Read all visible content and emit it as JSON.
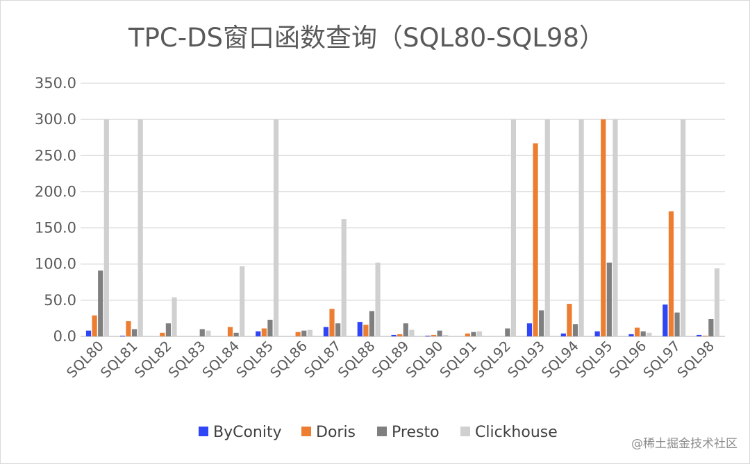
{
  "chart_data": {
    "type": "bar",
    "title": "TPC-DS窗口函数查询（SQL80-SQL98）",
    "categories": [
      "SQL80",
      "SQL81",
      "SQL82",
      "SQL83",
      "SQL84",
      "SQL85",
      "SQL86",
      "SQL87",
      "SQL88",
      "SQL89",
      "SQL90",
      "SQL91",
      "SQL92",
      "SQL93",
      "SQL94",
      "SQL95",
      "SQL96",
      "SQL97",
      "SQL98"
    ],
    "series": [
      {
        "name": "ByConity",
        "color": "#2e46f5",
        "values": [
          8,
          1,
          0,
          0,
          0,
          7,
          0,
          13,
          20,
          2,
          1,
          0,
          0,
          18,
          4,
          7,
          3,
          44,
          2
        ]
      },
      {
        "name": "Doris",
        "color": "#ed7d31",
        "values": [
          29,
          21,
          5,
          0,
          13,
          11,
          6,
          38,
          16,
          3,
          2,
          4,
          0,
          267,
          45,
          300,
          12,
          173,
          1
        ]
      },
      {
        "name": "Presto",
        "color": "#7f7f7f",
        "values": [
          91,
          10,
          18,
          10,
          5,
          23,
          8,
          18,
          35,
          18,
          8,
          6,
          11,
          36,
          17,
          102,
          7,
          33,
          24
        ]
      },
      {
        "name": "Clickhouse",
        "color": "#d0d0d0",
        "values": [
          300,
          300,
          54,
          8,
          97,
          300,
          9,
          162,
          102,
          9,
          2,
          7,
          300,
          300,
          300,
          300,
          5,
          300,
          94
        ]
      }
    ],
    "yticks": [
      "0.0",
      "50.0",
      "100.0",
      "150.0",
      "200.0",
      "250.0",
      "300.0",
      "350.0"
    ],
    "ylim": [
      0,
      350
    ],
    "grid": true,
    "legend_position": "bottom"
  },
  "watermark": "@稀土掘金技术社区"
}
